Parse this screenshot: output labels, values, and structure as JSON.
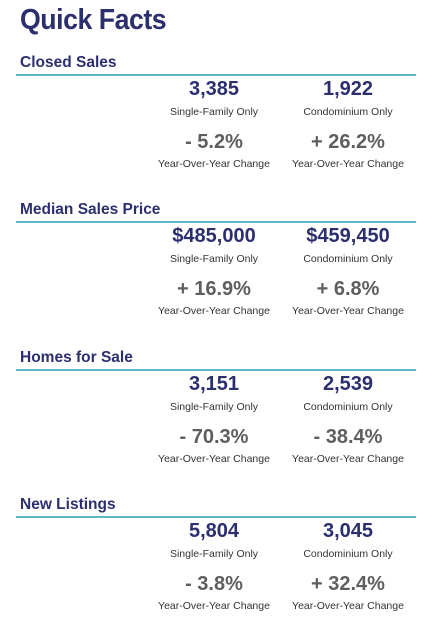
{
  "title": "Quick Facts",
  "sections": [
    {
      "title": "Closed Sales",
      "single_family": {
        "value": "3,385",
        "label": "Single-Family Only",
        "change": "- 5.2%",
        "change_label": "Year-Over-Year Change"
      },
      "condo": {
        "value": "1,922",
        "label": "Condominium Only",
        "change": "+ 26.2%",
        "change_label": "Year-Over-Year Change"
      }
    },
    {
      "title": "Median Sales Price",
      "single_family": {
        "value": "$485,000",
        "label": "Single-Family Only",
        "change": "+ 16.9%",
        "change_label": "Year-Over-Year Change"
      },
      "condo": {
        "value": "$459,450",
        "label": "Condominium Only",
        "change": "+ 6.8%",
        "change_label": "Year-Over-Year Change"
      }
    },
    {
      "title": "Homes for Sale",
      "single_family": {
        "value": "3,151",
        "label": "Single-Family Only",
        "change": "- 70.3%",
        "change_label": "Year-Over-Year Change"
      },
      "condo": {
        "value": "2,539",
        "label": "Condominium Only",
        "change": "- 38.4%",
        "change_label": "Year-Over-Year Change"
      }
    },
    {
      "title": "New Listings",
      "single_family": {
        "value": "5,804",
        "label": "Single-Family Only",
        "change": "- 3.8%",
        "change_label": "Year-Over-Year Change"
      },
      "condo": {
        "value": "3,045",
        "label": "Condominium Only",
        "change": "+ 32.4%",
        "change_label": "Year-Over-Year Change"
      }
    }
  ]
}
